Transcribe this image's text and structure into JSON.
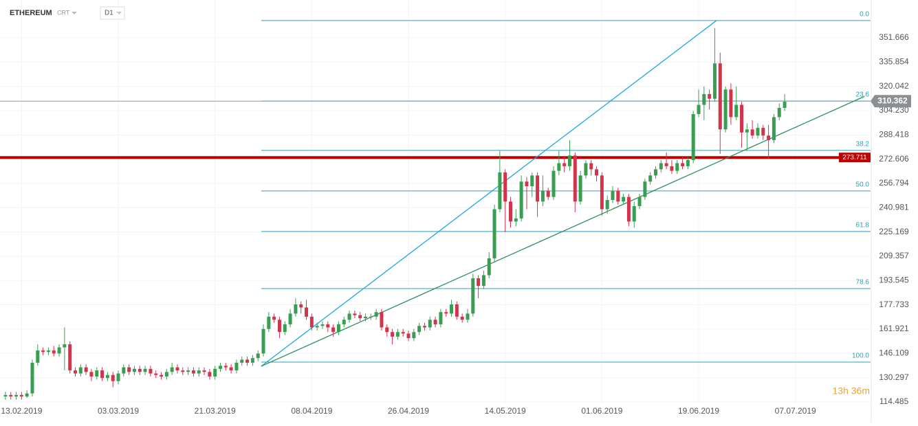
{
  "header": {
    "symbol": "ETHEREUM",
    "feed": "CRT",
    "timeframe": "D1"
  },
  "timer": "13h 36m",
  "chart_data": {
    "type": "candlestick",
    "categories": [
      null,
      null,
      null,
      "13.02.2019",
      null,
      null,
      null,
      null,
      null,
      null,
      null,
      null,
      null,
      null,
      null,
      null,
      null,
      null,
      null,
      null,
      null,
      "03.03.2019",
      null,
      null,
      null,
      null,
      null,
      null,
      null,
      null,
      null,
      null,
      null,
      null,
      null,
      null,
      null,
      null,
      null,
      "21.03.2019",
      null,
      null,
      null,
      null,
      null,
      null,
      null,
      null,
      null,
      null,
      null,
      null,
      null,
      null,
      null,
      null,
      null,
      "08.04.2019",
      null,
      null,
      null,
      null,
      null,
      null,
      null,
      null,
      null,
      null,
      null,
      null,
      null,
      null,
      null,
      null,
      null,
      "26.04.2019",
      null,
      null,
      null,
      null,
      null,
      null,
      null,
      null,
      null,
      null,
      null,
      null,
      null,
      null,
      null,
      null,
      null,
      "14.05.2019",
      null,
      null,
      null,
      null,
      null,
      null,
      null,
      null,
      null,
      null,
      null,
      null,
      null,
      null,
      null,
      null,
      null,
      "01.06.2019",
      null,
      null,
      null,
      null,
      null,
      null,
      null,
      null,
      null,
      null,
      null,
      null,
      null,
      null,
      null,
      null,
      null,
      "19.06.2019",
      null,
      null,
      null,
      null,
      null,
      null,
      null,
      null,
      null,
      null,
      null,
      null,
      null,
      null,
      null,
      null,
      null,
      "07.07.2019",
      null,
      null,
      null,
      null,
      null,
      null,
      null,
      null,
      null,
      null,
      null,
      null,
      null,
      null
    ],
    "open": [
      118,
      119,
      118,
      119,
      118,
      120,
      140,
      148,
      147,
      148,
      146,
      150,
      152,
      135,
      133,
      137,
      134,
      131,
      135,
      130,
      132,
      128,
      133,
      137,
      134,
      136,
      134,
      136,
      133,
      132,
      131,
      134,
      137,
      135,
      134,
      135,
      133,
      135,
      134,
      131,
      136,
      138,
      137,
      135,
      140,
      142,
      140,
      143,
      146,
      162,
      170,
      168,
      160,
      165,
      172,
      178,
      176,
      170,
      163,
      164,
      165,
      163,
      160,
      165,
      168,
      172,
      171,
      169,
      170,
      170,
      173,
      163,
      160,
      157,
      160,
      159,
      156,
      160,
      164,
      163,
      168,
      165,
      173,
      172,
      178,
      170,
      168,
      172,
      195,
      190,
      197,
      208,
      240,
      264,
      245,
      232,
      234,
      258,
      255,
      262,
      245,
      252,
      248,
      265,
      270,
      268,
      275,
      245,
      262,
      270,
      266,
      262,
      240,
      246,
      252,
      245,
      248,
      232,
      242,
      248,
      258,
      262,
      266,
      270,
      268,
      265,
      270,
      268,
      272,
      302,
      308,
      315,
      312,
      335,
      292,
      318,
      300,
      308,
      290,
      292,
      288,
      293,
      288,
      285,
      300,
      306,
      null,
      null,
      null,
      null,
      null,
      null,
      null,
      null,
      null,
      null,
      null,
      null,
      null,
      null,
      null,
      null
    ],
    "high": [
      121,
      121,
      121,
      121,
      122,
      142,
      152,
      150,
      150,
      151,
      152,
      163,
      154,
      137,
      139,
      139,
      136,
      137,
      137,
      134,
      134,
      135,
      139,
      139,
      138,
      138,
      138,
      138,
      135,
      134,
      136,
      140,
      139,
      137,
      137,
      137,
      137,
      137,
      136,
      138,
      140,
      140,
      139,
      142,
      144,
      144,
      145,
      148,
      165,
      173,
      172,
      170,
      167,
      175,
      182,
      180,
      181,
      172,
      166,
      167,
      167,
      165,
      167,
      170,
      174,
      174,
      173,
      172,
      172,
      175,
      175,
      165,
      162,
      162,
      162,
      161,
      162,
      166,
      166,
      170,
      170,
      175,
      175,
      181,
      180,
      172,
      175,
      198,
      197,
      200,
      212,
      243,
      278,
      266,
      248,
      240,
      262,
      261,
      264,
      264,
      262,
      254,
      268,
      278,
      274,
      285,
      277,
      265,
      272,
      272,
      268,
      264,
      249,
      255,
      254,
      250,
      250,
      245,
      250,
      260,
      264,
      268,
      272,
      277,
      272,
      272,
      274,
      274,
      304,
      318,
      320,
      318,
      358,
      342,
      320,
      322,
      320,
      310,
      296,
      298,
      296,
      295,
      295,
      302,
      309,
      315,
      null,
      null,
      null,
      null,
      null,
      null,
      null,
      null,
      null,
      null,
      null,
      null,
      null,
      null,
      null,
      null
    ],
    "low": [
      116,
      116,
      116,
      116,
      117,
      118,
      138,
      145,
      145,
      144,
      144,
      135,
      133,
      131,
      131,
      132,
      128,
      129,
      128,
      128,
      124,
      126,
      131,
      132,
      132,
      132,
      132,
      131,
      130,
      129,
      129,
      132,
      133,
      132,
      132,
      131,
      131,
      132,
      129,
      129,
      134,
      135,
      133,
      133,
      138,
      138,
      138,
      141,
      144,
      160,
      166,
      156,
      158,
      163,
      170,
      172,
      168,
      161,
      161,
      162,
      160,
      157,
      158,
      163,
      166,
      169,
      167,
      167,
      168,
      168,
      161,
      157,
      152,
      155,
      157,
      154,
      154,
      158,
      161,
      161,
      163,
      163,
      170,
      170,
      168,
      166,
      166,
      170,
      182,
      188,
      195,
      206,
      238,
      225,
      228,
      229,
      232,
      240,
      248,
      235,
      242,
      246,
      246,
      262,
      264,
      265,
      238,
      243,
      260,
      262,
      258,
      236,
      237,
      244,
      243,
      243,
      229,
      228,
      240,
      246,
      256,
      260,
      264,
      266,
      263,
      263,
      266,
      266,
      270,
      300,
      298,
      305,
      310,
      276,
      290,
      295,
      298,
      280,
      278,
      286,
      286,
      285,
      273,
      283,
      298,
      304,
      null,
      null,
      null,
      null,
      null,
      null,
      null,
      null,
      null,
      null,
      null,
      null,
      null,
      null,
      null,
      null
    ],
    "close": [
      119,
      118,
      119,
      118,
      120,
      140,
      148,
      147,
      148,
      146,
      150,
      152,
      135,
      133,
      137,
      134,
      131,
      135,
      130,
      132,
      128,
      133,
      137,
      134,
      136,
      134,
      136,
      133,
      132,
      131,
      134,
      137,
      135,
      134,
      135,
      133,
      135,
      134,
      131,
      136,
      138,
      137,
      135,
      140,
      142,
      140,
      143,
      146,
      162,
      170,
      168,
      160,
      165,
      172,
      178,
      176,
      170,
      163,
      164,
      165,
      163,
      160,
      165,
      168,
      172,
      171,
      169,
      170,
      170,
      173,
      163,
      160,
      157,
      160,
      159,
      156,
      160,
      164,
      163,
      168,
      165,
      173,
      172,
      178,
      170,
      168,
      172,
      195,
      190,
      197,
      208,
      240,
      264,
      245,
      232,
      234,
      258,
      255,
      262,
      245,
      252,
      248,
      265,
      270,
      268,
      275,
      245,
      262,
      270,
      266,
      262,
      240,
      246,
      252,
      245,
      248,
      232,
      242,
      248,
      258,
      262,
      266,
      270,
      268,
      265,
      270,
      268,
      272,
      302,
      308,
      315,
      312,
      335,
      292,
      318,
      300,
      308,
      290,
      292,
      288,
      293,
      288,
      285,
      300,
      306,
      310,
      null,
      null,
      null,
      null,
      null,
      null,
      null,
      null,
      null,
      null,
      null,
      null,
      null,
      null,
      null,
      null
    ],
    "up_color": "#3a9e52",
    "down_color": "#d2344c",
    "ylim": [
      113.1,
      376.3
    ],
    "yticks": [
      351.666,
      335.854,
      320.042,
      {
        "value": 304.23,
        "label": "304.230"
      },
      288.418,
      272.606,
      256.794,
      240.981,
      225.169,
      209.357,
      193.545,
      177.733,
      161.921,
      146.109,
      130.297,
      114.485
    ],
    "grid": true,
    "fib_color": "#2aa3b8",
    "fib_levels": [
      {
        "label": "0.0",
        "value": 362.9
      },
      {
        "label": "23.6",
        "value": 310.5
      },
      {
        "label": "38.2",
        "value": 278.3
      },
      {
        "label": "50.0",
        "value": 251.9
      },
      {
        "label": "61.8",
        "value": 225.5
      },
      {
        "label": "78.6",
        "value": 188.3
      },
      {
        "label": "100.0",
        "value": 140.4
      }
    ],
    "trend_lines": [
      {
        "color": "#1ea6e2",
        "x": [
          47.6,
          132.3
        ],
        "y": [
          137.7,
          362.9
        ]
      },
      {
        "color": "#2e8f5e",
        "x": [
          47.6,
          159.8
        ],
        "y": [
          137.7,
          313.4
        ]
      }
    ],
    "price_line": 310.362,
    "alert_line": 273.711,
    "alert_color": "#c00000"
  }
}
